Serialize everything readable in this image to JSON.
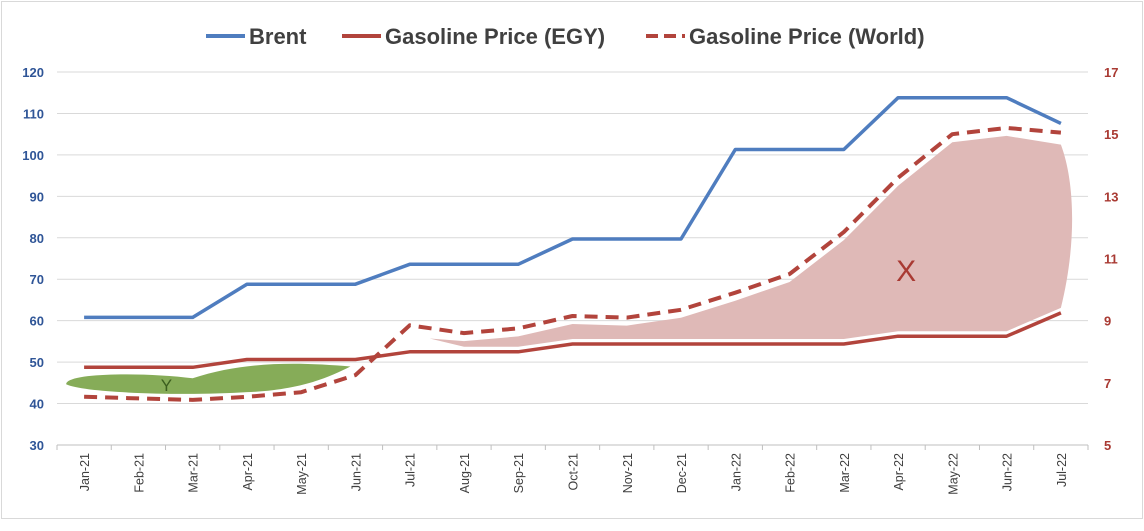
{
  "chart_data": {
    "type": "line",
    "categories": [
      "Jan-21",
      "Feb-21",
      "Mar-21",
      "Apr-21",
      "May-21",
      "Jun-21",
      "Jul-21",
      "Aug-21",
      "Sep-21",
      "Oct-21",
      "Nov-21",
      "Dec-21",
      "Jan-22",
      "Feb-22",
      "Mar-22",
      "Apr-22",
      "May-22",
      "Jun-22",
      "Jul-22"
    ],
    "left_axis": {
      "ylim": [
        30,
        120
      ],
      "ticks": [
        30,
        40,
        50,
        60,
        70,
        80,
        90,
        100,
        110,
        120
      ],
      "color": "#2F5597"
    },
    "right_axis": {
      "ylim": [
        5,
        17
      ],
      "ticks": [
        5,
        7,
        9,
        11,
        13,
        15,
        17
      ],
      "color": "#A93A33"
    },
    "series": [
      {
        "name": "Brent",
        "axis": "left",
        "color": "#4F7DBF",
        "style": "solid",
        "values": [
          60.8,
          60.8,
          60.8,
          68.8,
          68.8,
          68.8,
          73.6,
          73.6,
          73.6,
          79.7,
          79.7,
          79.7,
          101.3,
          101.3,
          101.3,
          113.8,
          113.8,
          113.8,
          107.6
        ]
      },
      {
        "name": "Gasoline Price (EGY)",
        "axis": "right",
        "color": "#B2443C",
        "style": "solid",
        "values": [
          7.5,
          7.5,
          7.5,
          7.75,
          7.75,
          7.75,
          8.0,
          8.0,
          8.0,
          8.25,
          8.25,
          8.25,
          8.25,
          8.25,
          8.25,
          8.5,
          8.5,
          8.5,
          9.25
        ]
      },
      {
        "name": "Gasoline Price (World)",
        "axis": "right",
        "color": "#B2443C",
        "style": "dashed",
        "values": [
          6.55,
          6.5,
          6.45,
          6.55,
          6.7,
          7.25,
          8.85,
          8.6,
          8.75,
          9.15,
          9.1,
          9.35,
          9.9,
          10.5,
          11.85,
          13.6,
          15.0,
          15.2,
          15.05
        ]
      }
    ],
    "legend": {
      "position": "top"
    },
    "annotations": [
      {
        "label": "X",
        "color": "#A93A33"
      },
      {
        "label": "Y",
        "color": "#3B5E1E"
      }
    ],
    "grid": {
      "horizontal": true,
      "vertical": false
    }
  }
}
